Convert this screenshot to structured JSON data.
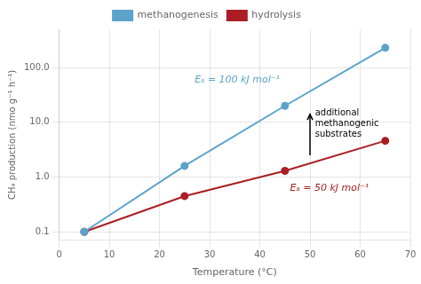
{
  "chart_data": {
    "type": "line",
    "x_label": "Temperature (°C)",
    "y_label": "CH₄ production (nmo g⁻¹ h⁻¹)",
    "x": [
      5,
      25,
      45,
      65
    ],
    "series": [
      {
        "name": "methanogenesis",
        "color": "#5ba3cb",
        "values": [
          0.1,
          1.6,
          20.0,
          230.0
        ],
        "marker": "circle"
      },
      {
        "name": "hydrolysis",
        "color": "#aa1e23",
        "values": [
          0.1,
          0.45,
          1.3,
          4.6
        ],
        "marker": "circle"
      }
    ],
    "log": "y",
    "xlim": [
      0,
      70
    ],
    "xticks": [
      0,
      10,
      20,
      30,
      40,
      50,
      60,
      70
    ],
    "ylim": [
      0.07,
      500
    ],
    "yticks": [
      0.1,
      {
        "value": 1.0,
        "label": "1.0"
      },
      {
        "value": 10.0,
        "label": "10.0"
      },
      {
        "value": 100.0,
        "label": "100.0"
      }
    ],
    "grid": true,
    "legend": "top",
    "annotations": [
      {
        "text": "Eₐ = 100 kJ mol⁻¹",
        "x": 27,
        "y": 60,
        "color": "#5ba3cb"
      },
      {
        "text": "Eₐ = 50 kJ mol⁻¹",
        "x": 46,
        "y": 0.62,
        "color": "#aa1e23"
      },
      {
        "text": "additional\nmethanogenic\nsubstrates",
        "x": 51,
        "y": 18.0
      }
    ],
    "arrows": [
      {
        "x": [
          50,
          50
        ],
        "y": [
          2.5,
          14.0
        ]
      }
    ]
  }
}
